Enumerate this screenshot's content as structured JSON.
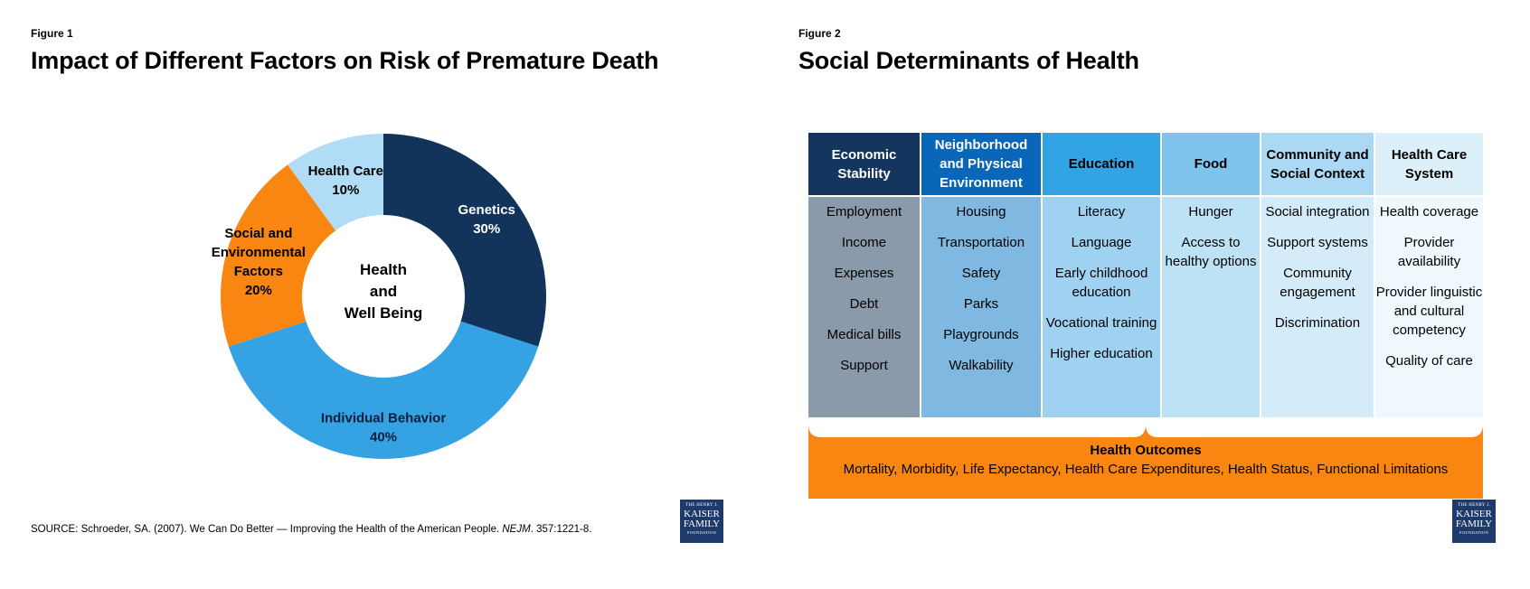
{
  "figure1": {
    "label": "Figure 1",
    "title": "Impact of Different Factors on Risk of Premature Death",
    "source_prefix": "SOURCE: Schroeder, SA. (2007). We Can Do Better — Improving the Health of the American People. ",
    "source_journal": "NEJM",
    "source_suffix": ". 357:1221-8.",
    "center_lines": [
      "Health",
      "and",
      "Well Being"
    ]
  },
  "figure2": {
    "label": "Figure 2",
    "title": "Social Determinants of Health",
    "columns": [
      {
        "header": "Economic Stability",
        "header_color": "#14355e",
        "header_text_color": "#ffffff",
        "body_color": "#8a9aab",
        "items": [
          "Employment",
          "Income",
          "Expenses",
          "Debt",
          "Medical bills",
          "Support"
        ]
      },
      {
        "header": "Neighborhood and Physical Environment",
        "header_color": "#0a66b8",
        "header_text_color": "#ffffff",
        "body_color": "#7fb8e0",
        "items": [
          "Housing",
          "Transportation",
          "Safety",
          "Parks",
          "Playgrounds",
          "Walkability"
        ]
      },
      {
        "header": "Education",
        "header_color": "#32a3e3",
        "header_text_color": "#000000",
        "body_color": "#9fd2f1",
        "items": [
          "Literacy",
          "Language",
          "Early childhood education",
          "Vocational training",
          "Higher education"
        ]
      },
      {
        "header": "Food",
        "header_color": "#7ec4ec",
        "header_text_color": "#000000",
        "body_color": "#bde2f6",
        "items": [
          "Hunger",
          "Access to healthy options"
        ]
      },
      {
        "header": "Community and Social Context",
        "header_color": "#abd9f3",
        "header_text_color": "#000000",
        "body_color": "#d4ecf9",
        "items": [
          "Social integration",
          "Support systems",
          "Community engagement",
          "Discrimination"
        ]
      },
      {
        "header": "Health Care System",
        "header_color": "#dcf0fa",
        "header_text_color": "#000000",
        "body_color": "#eef8fd",
        "items": [
          "Health coverage",
          "Provider availability",
          "Provider linguistic and cultural competency",
          "Quality of care"
        ]
      }
    ],
    "outcomes": {
      "title": "Health Outcomes",
      "text": "Mortality, Morbidity, Life Expectancy, Health Care Expenditures, Health Status, Functional Limitations",
      "color": "#f98610"
    }
  },
  "logo": {
    "line1": "THE HENRY J.",
    "line2": "KAISER",
    "line3": "FAMILY",
    "line4": "FOUNDATION"
  },
  "chart_data": {
    "type": "pie",
    "title": "Impact of Different Factors on Risk of Premature Death",
    "donut": true,
    "slices": [
      {
        "label": "Genetics",
        "value": 30,
        "display": "30%",
        "color": "#12345b",
        "text_color": "#ffffff"
      },
      {
        "label": "Individual Behavior",
        "value": 40,
        "display": "40%",
        "color": "#34a2e3",
        "text_color": "#0b1f3a"
      },
      {
        "label": "Social and Environmental Factors",
        "value": 20,
        "display": "20%",
        "color": "#f98610",
        "text_color": "#000000"
      },
      {
        "label": "Health Care",
        "value": 10,
        "display": "10%",
        "color": "#b0dcf5",
        "text_color": "#000000"
      }
    ]
  }
}
